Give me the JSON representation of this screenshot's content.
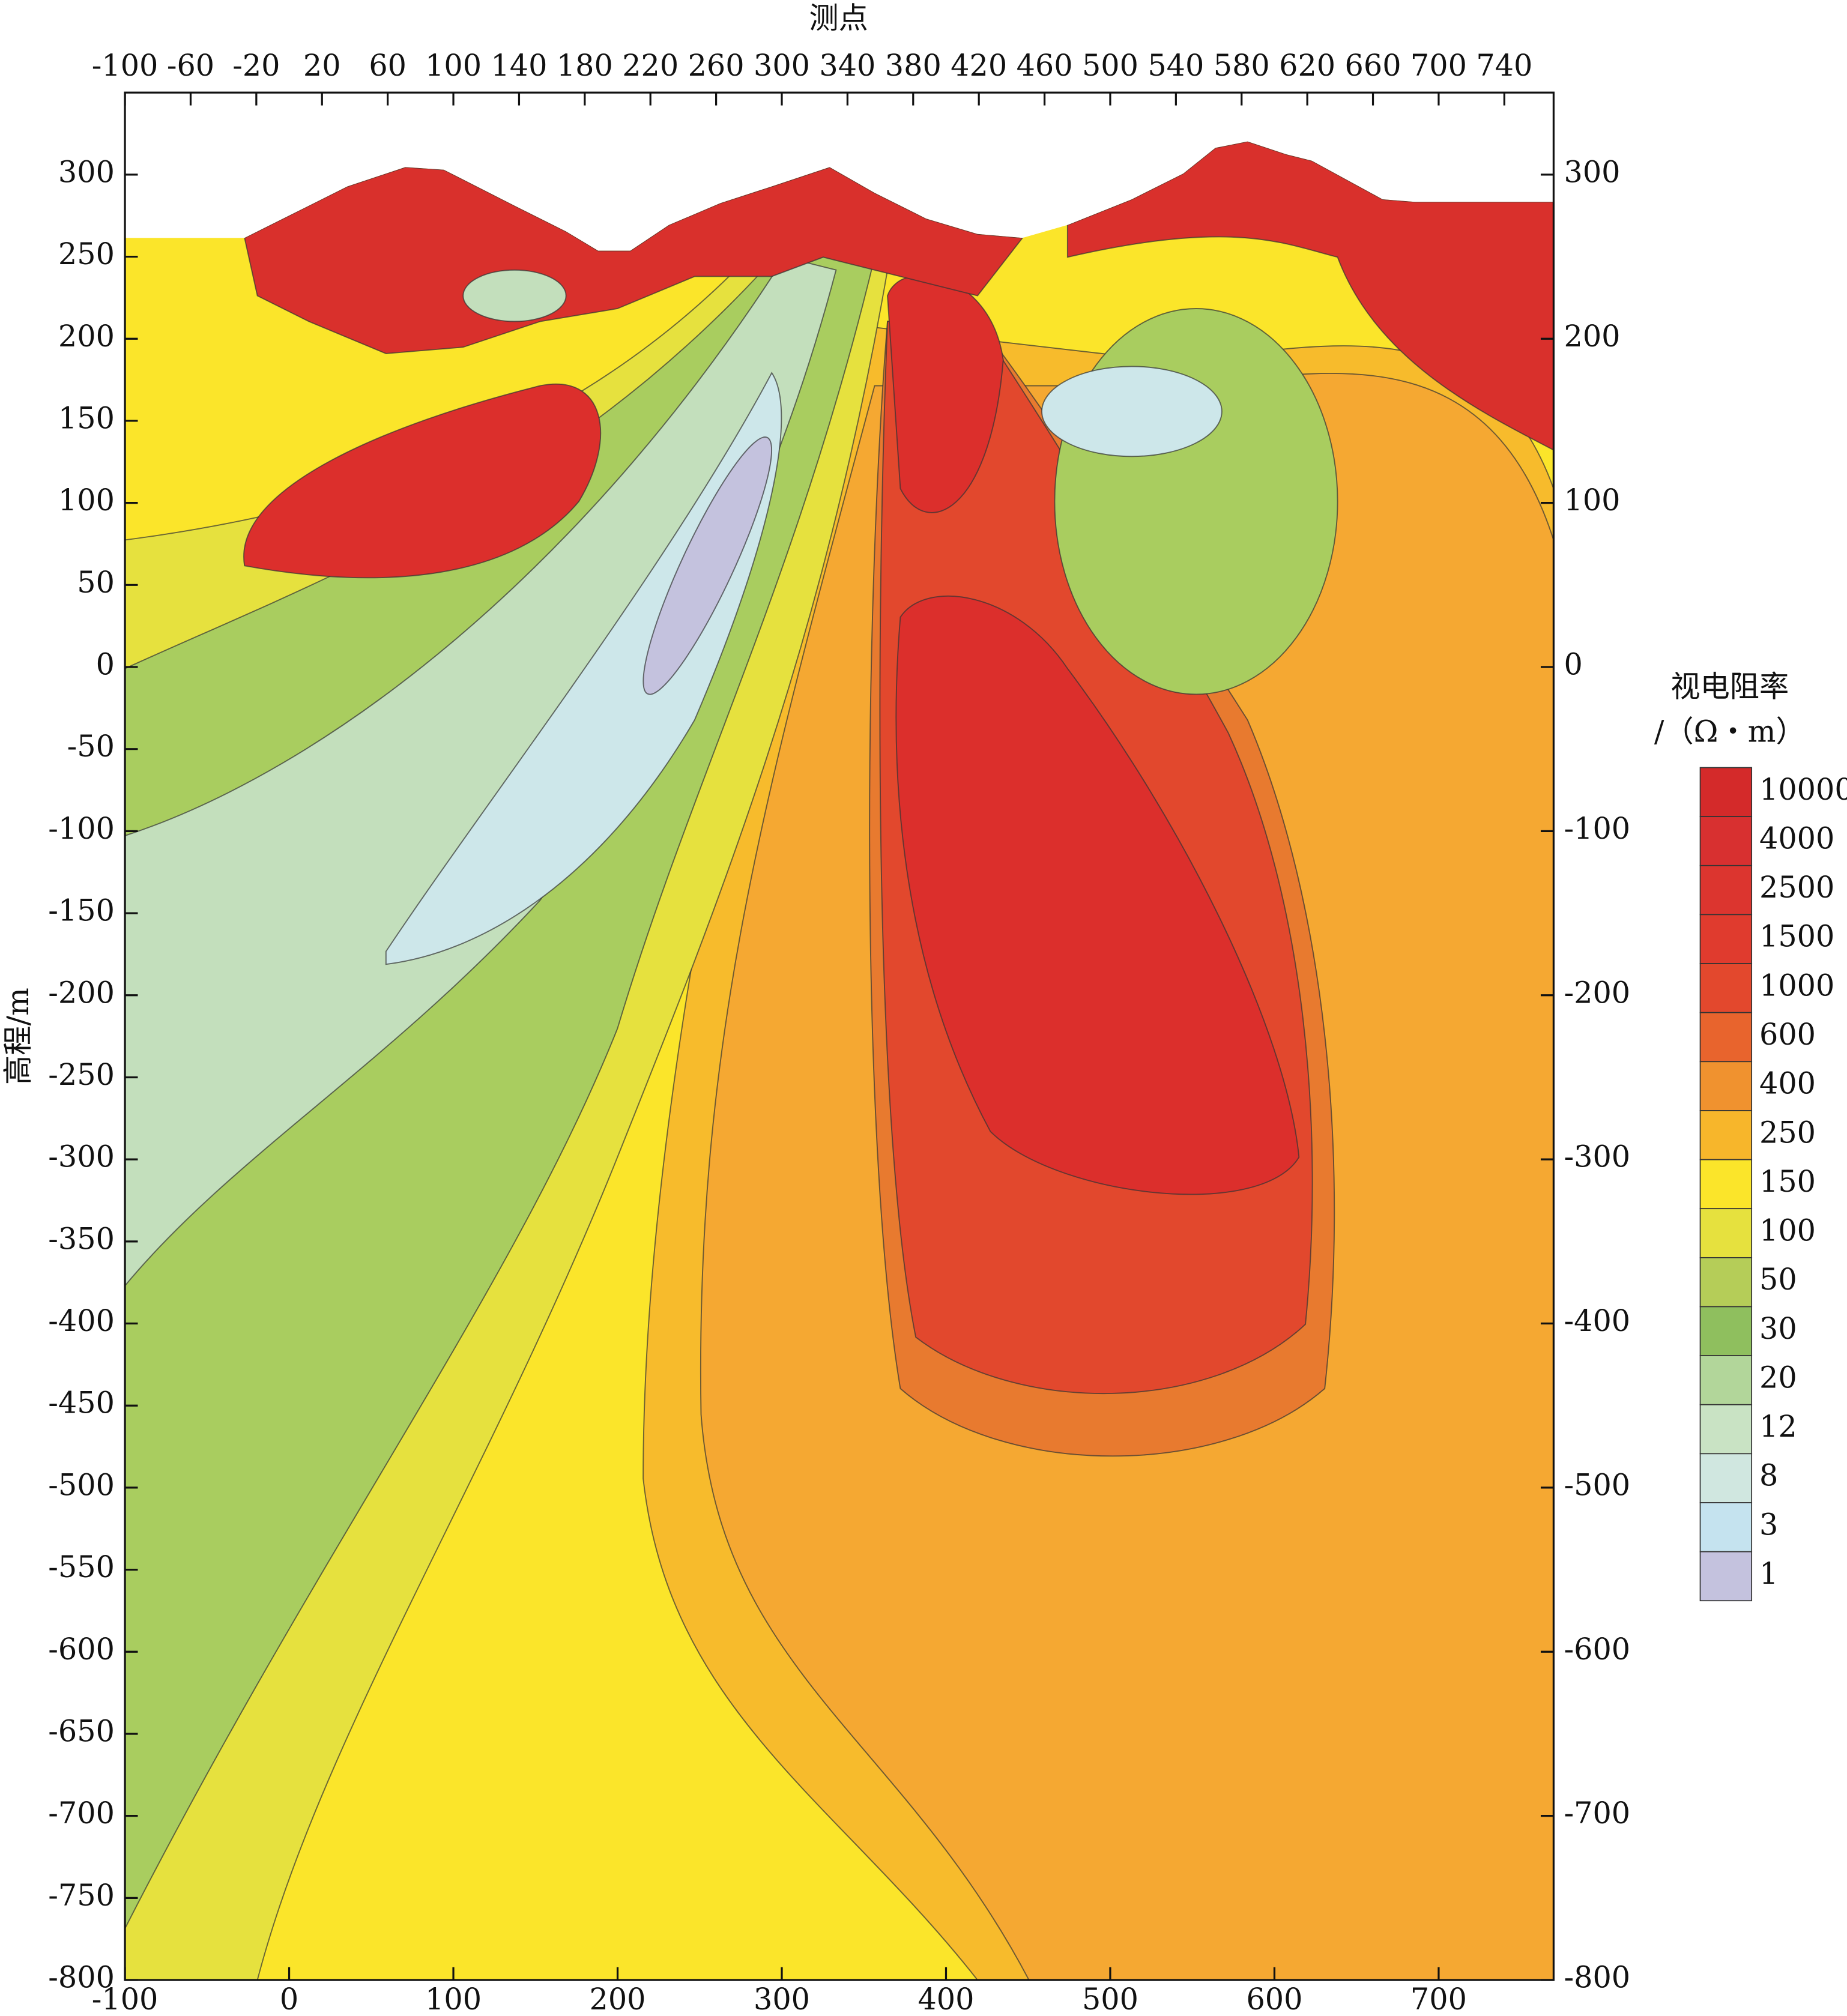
{
  "chart_data": {
    "type": "contour",
    "x_label": "测点",
    "y_label": "高程/m",
    "xlim": [
      -100,
      770
    ],
    "xticks": [
      -100,
      0,
      100,
      200,
      300,
      400,
      500,
      600,
      700
    ],
    "x2lim": [
      -100,
      770
    ],
    "x2ticks": [
      -100,
      -60,
      -20,
      20,
      60,
      100,
      140,
      180,
      220,
      260,
      300,
      340,
      380,
      420,
      460,
      500,
      540,
      580,
      620,
      660,
      700,
      740
    ],
    "ylim": [
      -800,
      350
    ],
    "yticks": [
      300,
      250,
      200,
      150,
      100,
      50,
      0,
      -50,
      -100,
      -150,
      -200,
      -250,
      -300,
      -350,
      -400,
      -450,
      -500,
      -550,
      -600,
      -650,
      -700,
      -750,
      -800
    ],
    "y2lim": [
      -800,
      350
    ],
    "y2ticks": [
      300,
      200,
      100,
      0,
      -100,
      -200,
      -300,
      -400,
      -500,
      -600,
      -700,
      -800
    ],
    "colorbar": {
      "title": [
        "视电阻率",
        "/（Ω・m）"
      ],
      "levels": [
        10000,
        4000,
        2500,
        1500,
        1000,
        600,
        400,
        250,
        150,
        100,
        50,
        30,
        20,
        12,
        8,
        3,
        1
      ],
      "colors": [
        "#d42a2a",
        "#d83030",
        "#dc352f",
        "#e03b2e",
        "#e3482d",
        "#e8642d",
        "#f0922f",
        "#f7b62b",
        "#fbe52a",
        "#e6e13e",
        "#b5cd58",
        "#8fbf5e",
        "#b2d69a",
        "#c9e3c4",
        "#d0e7e0",
        "#c5e3ef",
        "#c4c2de"
      ]
    }
  }
}
